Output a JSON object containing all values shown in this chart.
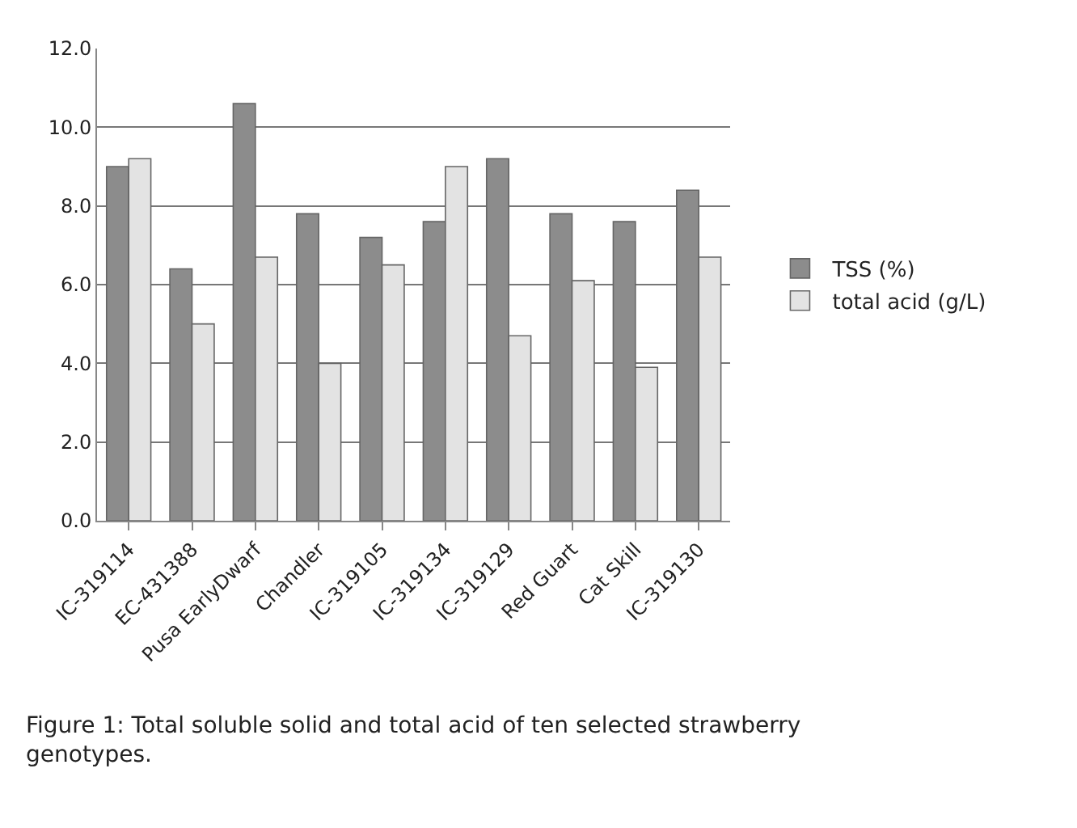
{
  "chart_data": {
    "type": "bar",
    "categories": [
      "IC-319114",
      "EC-431388",
      "Pusa EarlyDwarf",
      "Chandler",
      "IC-319105",
      "IC-319134",
      "IC-319129",
      "Red Guart",
      "Cat Skill",
      "IC-319130"
    ],
    "series": [
      {
        "name": "TSS (%)",
        "color": "#8c8c8c",
        "values": [
          9.0,
          6.4,
          10.6,
          7.8,
          7.2,
          7.6,
          9.2,
          7.8,
          7.6,
          8.4
        ]
      },
      {
        "name": "total acid (g/L)",
        "color": "#e3e3e3",
        "values": [
          9.2,
          5.0,
          6.7,
          4.0,
          6.5,
          9.0,
          4.7,
          6.1,
          3.9,
          6.7
        ]
      }
    ],
    "ylim": [
      0,
      12
    ],
    "yticks": [
      {
        "value": 0,
        "label": "0.0"
      },
      {
        "value": 2,
        "label": "2.0"
      },
      {
        "value": 4,
        "label": "4.0"
      },
      {
        "value": 6,
        "label": "6.0"
      },
      {
        "value": 8,
        "label": "8.0"
      },
      {
        "value": 10,
        "label": "10.0"
      },
      {
        "value": 12,
        "label": "12.0"
      }
    ],
    "grid": "y",
    "legend": "right",
    "annotations": [
      "Figure 1: Total soluble solid and total acid of ten selected strawberry genotypes."
    ]
  }
}
